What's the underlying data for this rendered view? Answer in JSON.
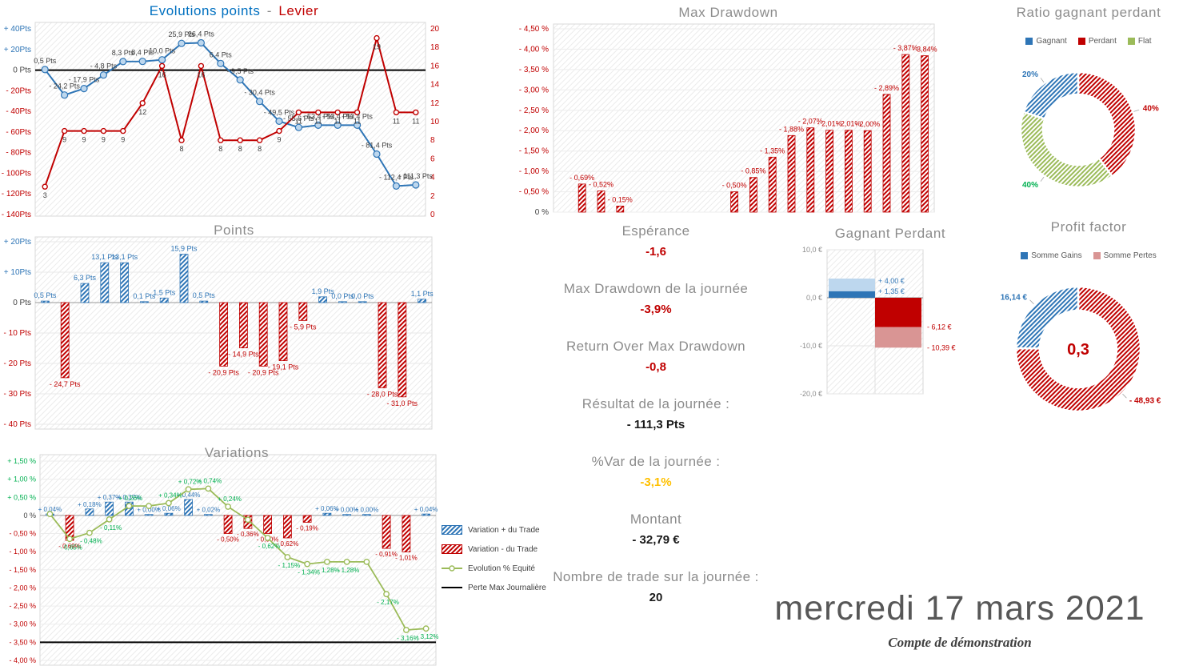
{
  "colors": {
    "blue": "#2E75B6",
    "light_blue": "#BDD7EE",
    "red": "#C00000",
    "light_red": "#D99594",
    "green": "#00B050",
    "olive": "#9BBB59",
    "gray": "#8C8C8C",
    "dark": "#404040",
    "yellow": "#FFC000"
  },
  "footer": {
    "date": "mercredi 17 mars 2021",
    "account": "Compte de démonstration"
  },
  "stats": {
    "items": [
      {
        "label": "Espérance",
        "value": "-1,6"
      },
      {
        "label": "Max Drawdown de la journée",
        "value": "-3,9%"
      },
      {
        "label": "Return Over Max Drawdown",
        "value": "-0,8"
      },
      {
        "label": "Résultat de la journée :",
        "value": "- 111,3 Pts"
      },
      {
        "label": "%Var de la journée :",
        "value": "-3,1%"
      },
      {
        "label": "Montant",
        "value": "- 32,79 €"
      },
      {
        "label": "Nombre de trade sur la journée :",
        "value": "20"
      }
    ]
  },
  "chart_data": [
    {
      "id": "evolutions-points-levier",
      "type": "line",
      "title_points": "Evolutions points",
      "title_sep": "-",
      "title_levier": "Levier",
      "left_axis": {
        "max": 40,
        "min": -140,
        "step": 20,
        "labels": [
          "+ 40Pts",
          "+ 20Pts",
          "0 Pts",
          "- 20Pts",
          "- 40Pts",
          "- 60Pts",
          "- 80Pts",
          "- 100Pts",
          "- 120Pts",
          "- 140Pts"
        ]
      },
      "right_axis": {
        "max": 20,
        "min": 0,
        "step": 2
      },
      "series": [
        {
          "name": "Evolutions points",
          "values": [
            0.5,
            -24.2,
            -17.9,
            -4.8,
            8.3,
            8.4,
            10.0,
            25.9,
            26.4,
            6.4,
            -9.5,
            -30.4,
            -49.5,
            -55.6,
            -53.4,
            -53.4,
            -53.4,
            -81.4,
            -112.4,
            -111.3
          ],
          "labels": [
            "0,5 Pts",
            "- 24,2 Pts",
            "- 17,9 Pts",
            "- 4,8 Pts",
            "8,3 Pts",
            "8,4 Pts",
            "10,0 Pts",
            "25,9 Pts",
            "26,4 Pts",
            "6,4 Pts",
            "- 9,5 Pts",
            "- 30,4 Pts",
            "- 49,5 Pts",
            "- 55,6 Pts",
            "- 53,4 Pts",
            "- 53,4 Pts",
            "- 53,4 Pts",
            "- 81,4 Pts",
            "- 112,4 Pts",
            "- 111,3 Pts"
          ]
        },
        {
          "name": "Levier",
          "values": [
            3,
            9,
            9,
            9,
            9,
            12,
            16,
            8,
            16,
            8,
            8,
            8,
            9,
            11,
            11,
            11,
            11,
            19,
            11,
            11
          ],
          "labels": [
            "3",
            "9",
            "9",
            "9",
            "9",
            "12",
            "16",
            "8",
            "16",
            "8",
            "8",
            "8",
            "9",
            "11",
            "11",
            "11",
            "11",
            "19",
            "11",
            "11"
          ]
        }
      ]
    },
    {
      "id": "points",
      "type": "bar",
      "title": "Points",
      "y_ticks": {
        "values": [
          20,
          10,
          0,
          -10,
          -20,
          -30,
          -40
        ],
        "labels": [
          "+ 20Pts",
          "+ 10Pts",
          "0 Pts",
          "- 10 Pts",
          "- 20 Pts",
          "- 30 Pts",
          "- 40 Pts"
        ]
      },
      "values": [
        0.5,
        -24.7,
        6.3,
        13.1,
        13.1,
        0.1,
        1.5,
        15.9,
        0.5,
        -20.9,
        -14.9,
        -20.9,
        -19.1,
        -5.9,
        1.9,
        0.0,
        0.0,
        -28.0,
        -31.0,
        1.1
      ],
      "labels": [
        "0,5 Pts",
        "- 24,7 Pts",
        "6,3 Pts",
        "13,1 Pts",
        "13,1 Pts",
        "0,1 Pts",
        "1,5 Pts",
        "15,9 Pts",
        "0,5 Pts",
        "- 20,9 Pts",
        "- 14,9 Pts",
        "- 20,9 Pts",
        "- 19,1 Pts",
        "- 5,9 Pts",
        "1,9 Pts",
        "0,0 Pts",
        "0,0 Pts",
        "- 28,0 Pts",
        "- 31,0 Pts",
        "1,1 Pts"
      ]
    },
    {
      "id": "variations",
      "type": "bar-line",
      "title": "Variations",
      "y_ticks": {
        "values": [
          1.5,
          1.0,
          0.5,
          0,
          -0.5,
          -1.0,
          -1.5,
          -2.0,
          -2.5,
          -3.0,
          -3.5,
          -4.0
        ],
        "labels": [
          "+ 1,50 %",
          "+ 1,00 %",
          "+ 0,50 %",
          "0 %",
          "- 0,50 %",
          "- 1,00 %",
          "- 1,50 %",
          "- 2,00 %",
          "- 2,50 %",
          "- 3,00 %",
          "- 3,50 %",
          "- 4,00 %"
        ]
      },
      "bars": [
        0.04,
        -0.69,
        0.18,
        0.37,
        0.37,
        0.0,
        0.06,
        0.44,
        0.02,
        -0.5,
        -0.36,
        -0.5,
        -0.62,
        -0.19,
        0.06,
        0.0,
        0.0,
        -0.91,
        -1.01,
        0.04
      ],
      "bar_labels": [
        "+ 0,04%",
        "- 0,69%",
        "+ 0,18%",
        "+ 0,37%",
        "+ 0,37%",
        "+ 0,00%",
        "+ 0,06%",
        "+ 0,44%",
        "+ 0,02%",
        "- 0,50%",
        "- 0,36%",
        "- 0,50%",
        "- 0,62%",
        "- 0,19%",
        "+ 0,06%",
        "+ 0,00%",
        "+ 0,00%",
        "- 0,91%",
        "- 1,01%",
        "+ 0,04%"
      ],
      "line": [
        0.04,
        -0.65,
        -0.48,
        -0.11,
        0.26,
        0.26,
        0.34,
        0.72,
        0.74,
        0.24,
        -0.12,
        -0.62,
        -1.15,
        -1.34,
        -1.28,
        -1.28,
        -1.28,
        -2.17,
        -3.16,
        -3.12
      ],
      "line_labels": [
        "",
        "- 0,65%",
        "- 0,48%",
        "- 0,11%",
        "+ 0,26%",
        "",
        "+ 0,34%",
        "+ 0,72%",
        "+ 0,74%",
        "+ 0,24%",
        "",
        "- 0,62%",
        "- 1,15%",
        "- 1,34%",
        "- 1,28%",
        "- 1,28%",
        "",
        "- 2,17%",
        "- 3,16%",
        "- 3,12%"
      ],
      "max_loss": -3.5,
      "legend": [
        "Variation + du Trade",
        "Variation - du Trade",
        "Evolution % Equité",
        "Perte Max Journalière"
      ]
    },
    {
      "id": "max-drawdown",
      "type": "bar",
      "title": "Max Drawdown",
      "y_ticks": {
        "values": [
          -4.5,
          -4.0,
          -3.5,
          -3.0,
          -2.5,
          -2.0,
          -1.5,
          -1.0,
          -0.5,
          0
        ],
        "labels": [
          "- 4,50 %",
          "- 4,00 %",
          "- 3,50 %",
          "- 3,00 %",
          "- 2,50 %",
          "- 2,00 %",
          "- 1,50 %",
          "- 1,00 %",
          "- 0,50 %",
          "0 %"
        ]
      },
      "values": [
        0,
        -0.69,
        -0.52,
        -0.15,
        0,
        0,
        0,
        0,
        0,
        -0.5,
        -0.85,
        -1.35,
        -1.88,
        -2.07,
        -2.01,
        -2.01,
        -2.0,
        -2.89,
        -3.87,
        -3.84
      ],
      "labels": [
        "",
        "- 0,69%",
        "- 0,52%",
        "- 0,15%",
        "",
        "",
        "",
        "",
        "",
        "- 0,50%",
        "- 0,85%",
        "- 1,35%",
        "- 1,88%",
        "- 2,07%",
        "- 2,01%",
        "- 2,01%",
        "- 2,00%",
        "- 2,89%",
        "- 3,87%",
        "- 3,84%"
      ]
    },
    {
      "id": "gagnant-perdant",
      "type": "range",
      "title": "Gagnant Perdant",
      "y_ticks": {
        "values": [
          10,
          0,
          -10,
          -20
        ],
        "labels": [
          "10,0 €",
          "0,0 €",
          "-10,0 €",
          "-20,0 €"
        ]
      },
      "gagnant": {
        "max": 4.0,
        "avg": 1.35,
        "max_label": "+ 4,00 €",
        "avg_label": "+ 1,35 €"
      },
      "perdant": {
        "avg": -6.12,
        "max": -10.39,
        "avg_label": "- 6,12 €",
        "max_label": "- 10,39 €"
      }
    },
    {
      "id": "ratio-gagnant-perdant",
      "type": "pie",
      "title": "Ratio gagnant perdant",
      "legend": [
        {
          "label": "Gagnant",
          "color": "#2E75B6"
        },
        {
          "label": "Perdant",
          "color": "#C00000"
        },
        {
          "label": "Flat",
          "color": "#9BBB59"
        }
      ],
      "slices": [
        {
          "name": "Perdant",
          "pct": 40,
          "label": "40%",
          "color": "#C00000",
          "pattern": "hred"
        },
        {
          "name": "Flat",
          "pct": 40,
          "label": "40%",
          "color": "#00B050",
          "pattern": "hgreen"
        },
        {
          "name": "Gagnant",
          "pct": 20,
          "label": "20%",
          "color": "#2E75B6",
          "pattern": "hblue"
        }
      ]
    },
    {
      "id": "profit-factor",
      "type": "pie",
      "title": "Profit factor",
      "center_label": "0,3",
      "legend": [
        {
          "label": "Somme Gains",
          "color": "#2E75B6"
        },
        {
          "label": "Somme Pertes",
          "color": "#D99594"
        }
      ],
      "slices": [
        {
          "name": "Somme Pertes",
          "pct": 75.2,
          "label": "- 48,93 €",
          "color": "#C00000",
          "pattern": "hred"
        },
        {
          "name": "Somme Gains",
          "pct": 24.8,
          "label": "16,14 €",
          "color": "#2E75B6",
          "pattern": "hblue"
        }
      ]
    }
  ]
}
